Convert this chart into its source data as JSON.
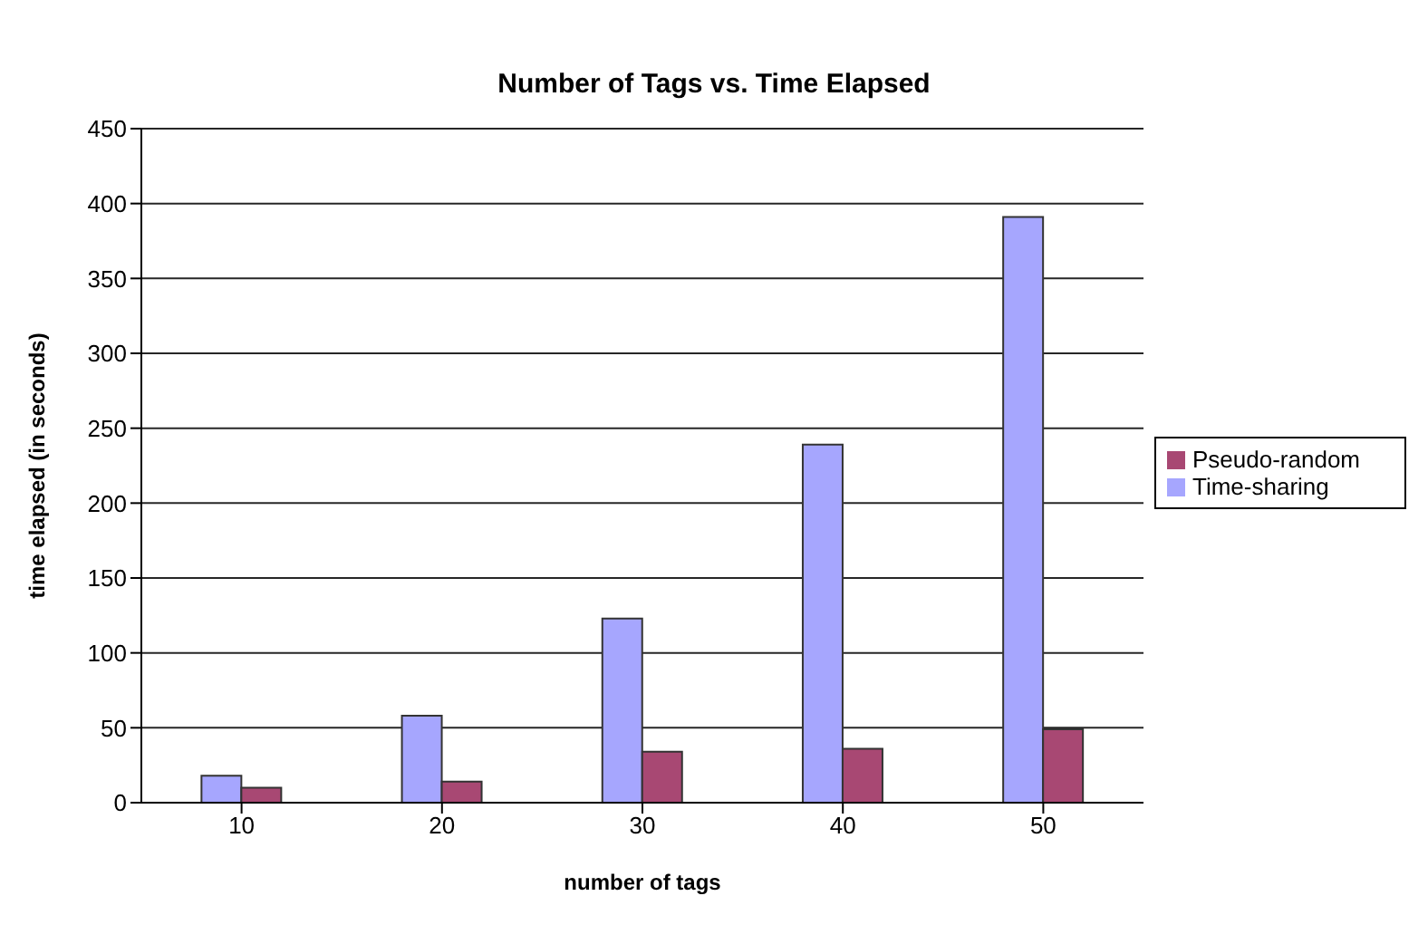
{
  "chart_data": {
    "type": "bar",
    "title": "Number of Tags vs. Time Elapsed",
    "xlabel": "number of tags",
    "ylabel": "time elapsed (in seconds)",
    "categories": [
      "10",
      "20",
      "30",
      "40",
      "50"
    ],
    "series": [
      {
        "name": "Time-sharing",
        "color": "#a6a6fe",
        "values": [
          18,
          58,
          123,
          239,
          391
        ]
      },
      {
        "name": "Pseudo-random",
        "color": "#a84873",
        "values": [
          10,
          14,
          34,
          36,
          49
        ]
      }
    ],
    "ylim": [
      0,
      450
    ],
    "yticks": [
      0,
      50,
      100,
      150,
      200,
      250,
      300,
      350,
      400,
      450
    ],
    "grid": "y",
    "legend": "right"
  }
}
